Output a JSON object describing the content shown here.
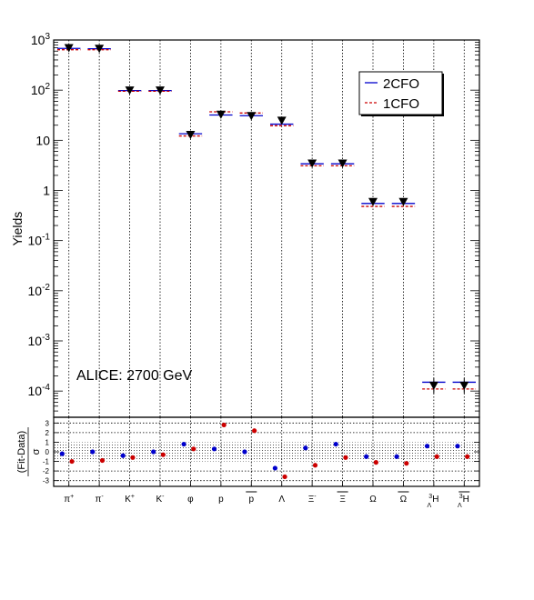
{
  "chart_data": [
    {
      "type": "scatter",
      "panel": "yields",
      "ylabel": "Yields",
      "yscale": "log",
      "ylim": [
        3e-05,
        1000
      ],
      "y_ticks": [
        {
          "value": 1000,
          "base": "10",
          "exp": "3"
        },
        {
          "value": 100,
          "base": "10",
          "exp": "2"
        },
        {
          "value": 10,
          "base": "10",
          "exp": ""
        },
        {
          "value": 1,
          "base": "1",
          "exp": ""
        },
        {
          "value": 0.1,
          "base": "10",
          "exp": "-1"
        },
        {
          "value": 0.01,
          "base": "10",
          "exp": "-2"
        },
        {
          "value": 0.001,
          "base": "10",
          "exp": "-3"
        },
        {
          "value": 0.0001,
          "base": "10",
          "exp": "-4"
        }
      ],
      "categories": [
        {
          "main": "π",
          "sup": "+",
          "sub": "",
          "pre_sup": "",
          "pre_sub": "",
          "bar": false
        },
        {
          "main": "π",
          "sup": "-",
          "sub": "",
          "pre_sup": "",
          "pre_sub": "",
          "bar": false
        },
        {
          "main": "K",
          "sup": "+",
          "sub": "",
          "pre_sup": "",
          "pre_sub": "",
          "bar": false
        },
        {
          "main": "K",
          "sup": "-",
          "sub": "",
          "pre_sup": "",
          "pre_sub": "",
          "bar": false
        },
        {
          "main": "φ",
          "sup": "",
          "sub": "",
          "pre_sup": "",
          "pre_sub": "",
          "bar": false
        },
        {
          "main": "p",
          "sup": "",
          "sub": "",
          "pre_sup": "",
          "pre_sub": "",
          "bar": false
        },
        {
          "main": "p",
          "sup": "",
          "sub": "",
          "pre_sup": "",
          "pre_sub": "",
          "bar": true
        },
        {
          "main": "Λ",
          "sup": "",
          "sub": "",
          "pre_sup": "",
          "pre_sub": "",
          "bar": false
        },
        {
          "main": "Ξ",
          "sup": "-",
          "sub": "",
          "pre_sup": "",
          "pre_sub": "",
          "bar": false
        },
        {
          "main": "Ξ",
          "sup": "",
          "sub": "",
          "pre_sup": "",
          "pre_sub": "",
          "bar": true
        },
        {
          "main": "Ω",
          "sup": "",
          "sub": "",
          "pre_sup": "",
          "pre_sub": "",
          "bar": false
        },
        {
          "main": "Ω",
          "sup": "",
          "sub": "",
          "pre_sup": "",
          "pre_sub": "",
          "bar": true
        },
        {
          "main": "H",
          "sup": "",
          "sub": "",
          "pre_sup": "3",
          "pre_sub": "Λ",
          "bar": false
        },
        {
          "main": "H",
          "sup": "",
          "sub": "",
          "pre_sup": "3",
          "pre_sub": "Λ",
          "bar": true
        }
      ],
      "data_yields": [
        700,
        680,
        100,
        100,
        13,
        33,
        31,
        25,
        3.5,
        3.5,
        0.6,
        0.6,
        0.00013,
        0.00013
      ],
      "data_err_low": [
        600,
        580,
        92,
        92,
        11.5,
        30,
        28,
        22,
        3.2,
        3.2,
        0.53,
        0.53,
        9e-05,
        9e-05
      ],
      "data_err_high": [
        820,
        800,
        110,
        110,
        14.5,
        36,
        34,
        28,
        3.8,
        3.8,
        0.66,
        0.66,
        0.00018,
        0.00018
      ],
      "series": [
        {
          "name": "2CFO",
          "color": "#0000cc",
          "style": "solid",
          "values": [
            680,
            670,
            98,
            98,
            13.5,
            32,
            31,
            21,
            3.4,
            3.4,
            0.55,
            0.55,
            0.00015,
            0.00015
          ]
        },
        {
          "name": "1CFO",
          "color": "#cc0000",
          "style": "dashed",
          "values": [
            640,
            640,
            95,
            95,
            12.2,
            37,
            35,
            19.5,
            3.1,
            3.1,
            0.48,
            0.48,
            0.00011,
            0.00011
          ]
        }
      ],
      "legend_position": "top-right",
      "annotation": "ALICE: 2700 GeV",
      "grid": "vertical dotted at categories"
    },
    {
      "type": "scatter",
      "panel": "deviations",
      "ylabel": "(Fit-Data)",
      "ylabel_denominator": "σ",
      "ylim": [
        -3.6,
        3.6
      ],
      "y_ticks": [
        -3,
        -2,
        -1,
        0,
        1,
        2,
        3
      ],
      "band": [
        -1,
        1
      ],
      "series": [
        {
          "name": "2CFO",
          "color": "#0000cc",
          "values": [
            -0.2,
            0.0,
            -0.4,
            0.0,
            0.8,
            0.3,
            0.0,
            -1.7,
            0.4,
            0.8,
            -0.5,
            -0.5,
            0.6,
            0.6
          ]
        },
        {
          "name": "1CFO",
          "color": "#cc0000",
          "values": [
            -1.0,
            -0.9,
            -0.6,
            -0.3,
            0.3,
            2.8,
            2.2,
            -2.6,
            -1.4,
            -0.6,
            -1.1,
            -1.2,
            -0.5,
            -0.5
          ]
        }
      ]
    }
  ]
}
